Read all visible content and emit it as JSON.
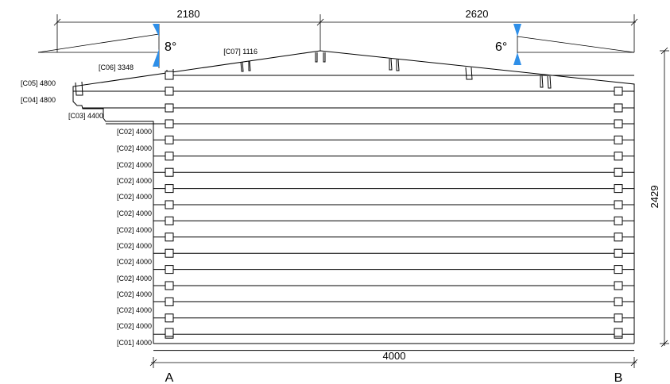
{
  "dimensions": {
    "top_left": "2180",
    "top_right": "2620",
    "right_height": "2429",
    "bottom_width": "4000"
  },
  "angles": {
    "left": "8°",
    "right": "6°"
  },
  "end_labels": {
    "left": "A",
    "right": "B"
  },
  "logs": [
    {
      "code": "[C01] 4000"
    },
    {
      "code": "[C02] 4000"
    },
    {
      "code": "[C02] 4000"
    },
    {
      "code": "[C02] 4000"
    },
    {
      "code": "[C02] 4000"
    },
    {
      "code": "[C02] 4000"
    },
    {
      "code": "[C02] 4000"
    },
    {
      "code": "[C02] 4000"
    },
    {
      "code": "[C02] 4000"
    },
    {
      "code": "[C02] 4000"
    },
    {
      "code": "[C02] 4000"
    },
    {
      "code": "[C02] 4000"
    },
    {
      "code": "[C02] 4000"
    },
    {
      "code": "[C02] 4000"
    },
    {
      "code": "[C03] 4400"
    },
    {
      "code": "[C04] 4800"
    },
    {
      "code": "[C05] 4800"
    },
    {
      "code": "[C06] 3348"
    },
    {
      "code": "[C07] 1116"
    }
  ],
  "colors": {
    "angle_marker": "#2f8fe8",
    "line": "#000000"
  }
}
